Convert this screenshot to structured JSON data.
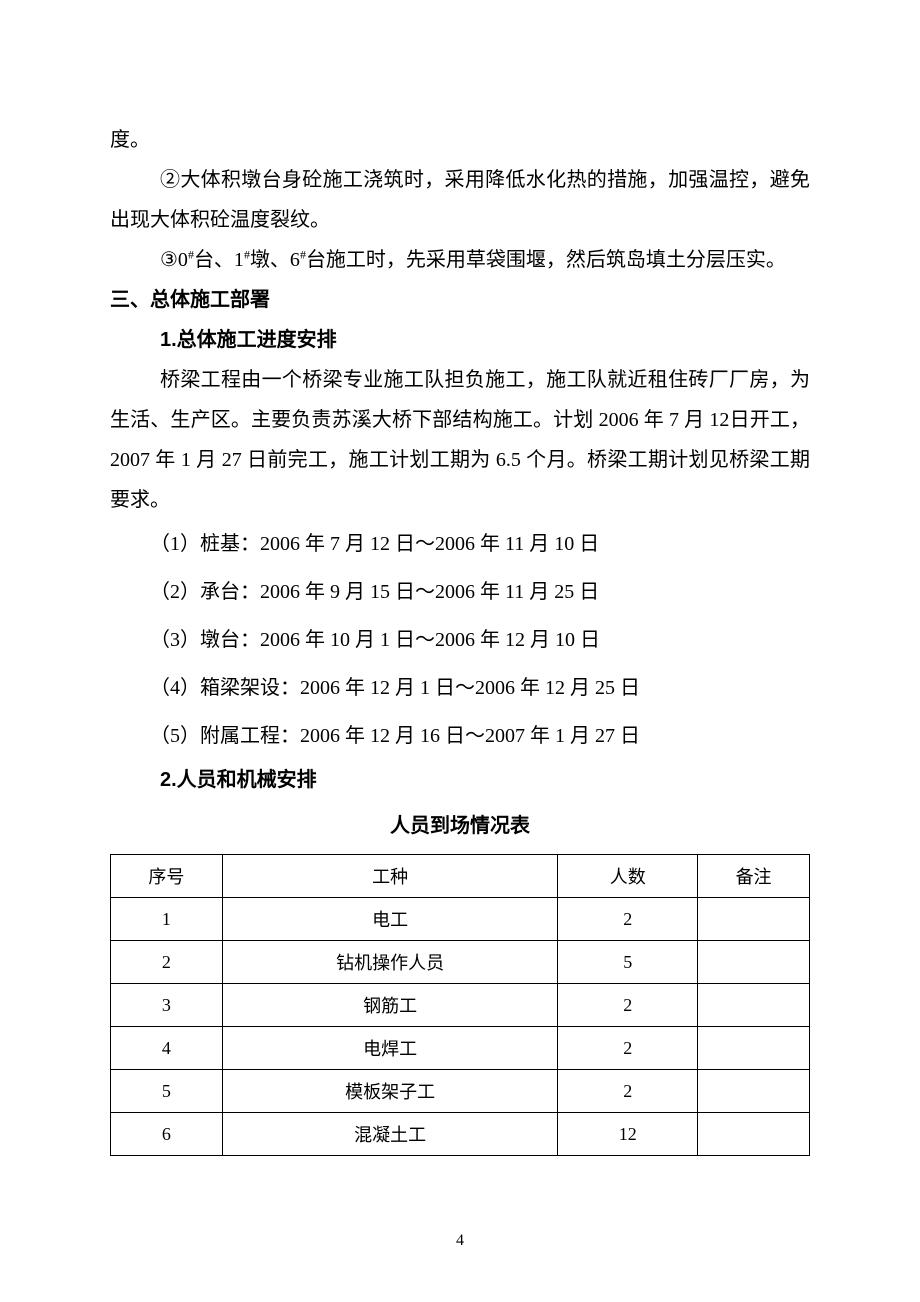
{
  "paragraphs": {
    "p1": "度。",
    "p2": "②大体积墩台身砼施工浇筑时，采用降低水化热的措施，加强温控，避免出现大体积砼温度裂纹。",
    "p3_prefix": "③0",
    "p3_sup1": "#",
    "p3_mid1": "台、1",
    "p3_sup2": "#",
    "p3_mid2": "墩、6",
    "p3_sup3": "#",
    "p3_suffix": "台施工时，先采用草袋围堰，然后筑岛填土分层压实。"
  },
  "headings": {
    "h1": "三、总体施工部署",
    "h2": "1.总体施工进度安排",
    "h3": "2.人员和机械安排"
  },
  "body": {
    "intro": "桥梁工程由一个桥梁专业施工队担负施工，施工队就近租住砖厂厂房，为生活、生产区。主要负责苏溪大桥下部结构施工。计划 2006 年 7 月 12日开工，  2007 年 1 月 27 日前完工，施工计划工期为 6.5 个月。桥梁工期计划见桥梁工期要求。"
  },
  "schedule": {
    "items": [
      "（1）桩基：2006 年 7 月 12 日～2006 年 11 月 10 日",
      "（2）承台：2006 年 9 月 15 日～2006 年 11 月 25 日",
      "（3）墩台：2006 年 10 月 1 日～2006 年 12 月 10 日",
      "（4）箱梁架设：2006 年 12 月 1 日～2006 年 12 月 25 日",
      "（5）附属工程：2006 年 12 月 16 日～2007 年 1 月 27 日"
    ]
  },
  "table": {
    "title": "人员到场情况表",
    "headers": {
      "seq": "序号",
      "type": "工种",
      "count": "人数",
      "note": "备注"
    },
    "rows": [
      {
        "seq": "1",
        "type": "电工",
        "count": "2",
        "note": ""
      },
      {
        "seq": "2",
        "type": "钻机操作人员",
        "count": "5",
        "note": ""
      },
      {
        "seq": "3",
        "type": "钢筋工",
        "count": "2",
        "note": ""
      },
      {
        "seq": "4",
        "type": "电焊工",
        "count": "2",
        "note": ""
      },
      {
        "seq": "5",
        "type": "模板架子工",
        "count": "2",
        "note": ""
      },
      {
        "seq": "6",
        "type": "混凝土工",
        "count": "12",
        "note": ""
      }
    ]
  },
  "page_number": "4",
  "style": {
    "text_color": "#000000",
    "background_color": "#ffffff",
    "border_color": "#000000",
    "body_fontsize": 20,
    "table_fontsize": 18,
    "line_height": 2.0
  }
}
